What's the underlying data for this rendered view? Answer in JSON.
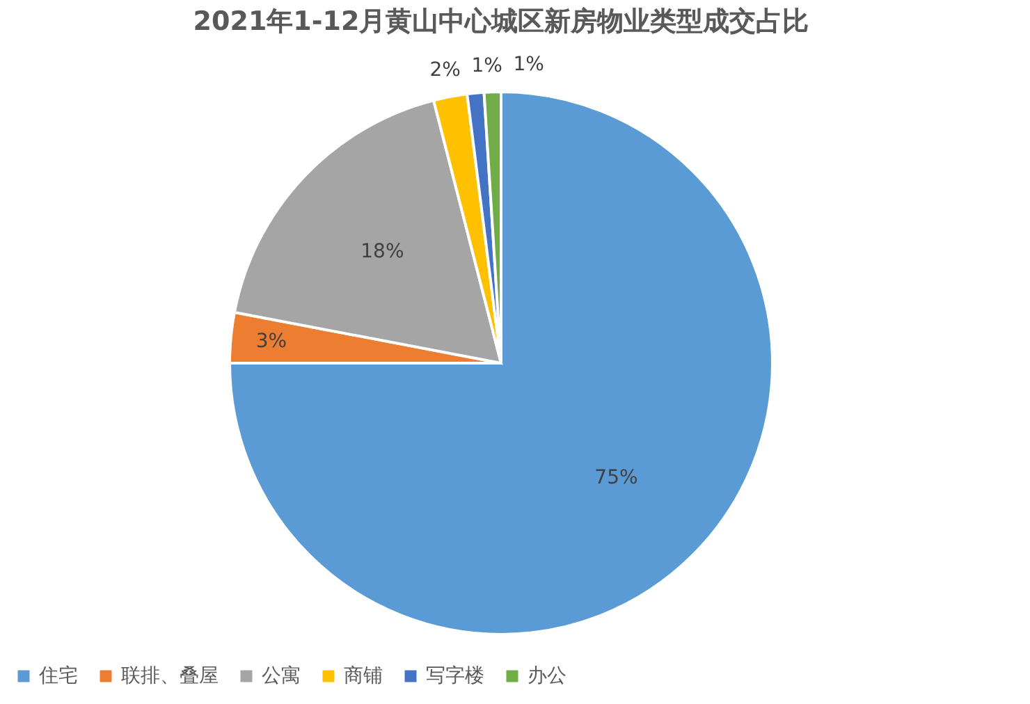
{
  "chart_data": {
    "type": "pie",
    "title": "2021年1-12月黄山中心城区新房物业类型成交占比",
    "categories": [
      "住宅",
      "联排、叠屋",
      "公寓",
      "商铺",
      "写字楼",
      "办公"
    ],
    "values": [
      75,
      3,
      18,
      2,
      1,
      1
    ],
    "colors": [
      "#5b9bd5",
      "#ed7d31",
      "#a5a5a5",
      "#ffc000",
      "#4472c4",
      "#70ad47"
    ],
    "value_labels": [
      "75%",
      "3%",
      "18%",
      "2%",
      "1%",
      "1%"
    ],
    "legend": "bottom"
  }
}
